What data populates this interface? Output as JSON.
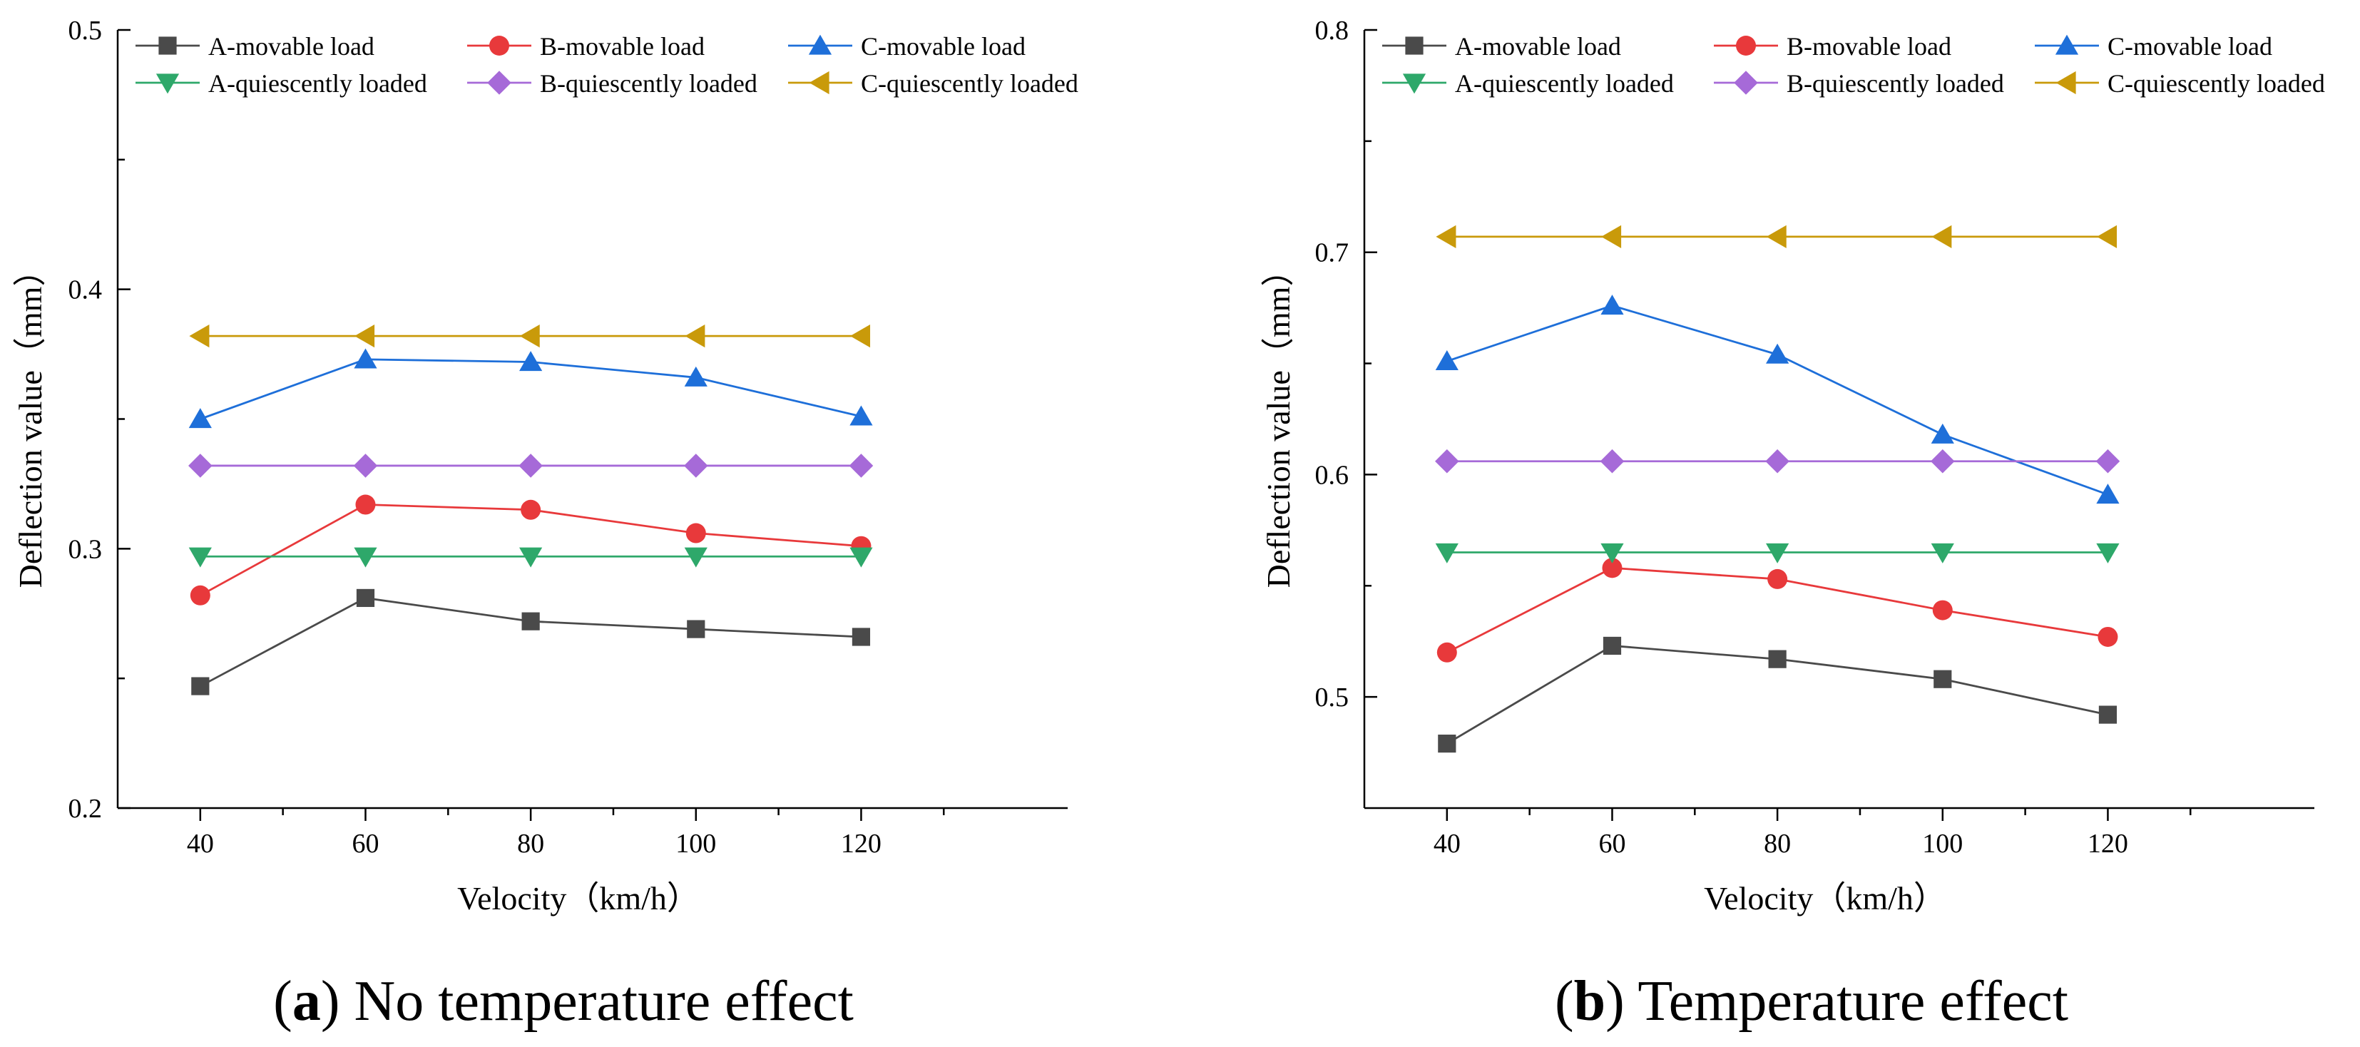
{
  "colors": {
    "A-movable load": "#4a4a4a",
    "B-movable load": "#e8393b",
    "C-movable load": "#1e6fd9",
    "A-quiescently loaded": "#2ea86a",
    "B-quiescently loaded": "#a66ad8",
    "C-quiescently loaded": "#c99a0a"
  },
  "markers": {
    "A-movable load": "square",
    "B-movable load": "circle",
    "C-movable load": "triangle-up",
    "A-quiescently loaded": "triangle-down",
    "B-quiescently loaded": "diamond",
    "C-quiescently loaded": "triangle-left"
  },
  "chart_data": [
    {
      "type": "line",
      "caption_letter": "a",
      "caption_text": " No temperature effect",
      "caption_open": "(",
      "caption_close": ")",
      "xlabel": "Velocity（km/h）",
      "ylabel": "Deflection value（mm）",
      "x": [
        40,
        60,
        80,
        100,
        120
      ],
      "xticks": [
        "40",
        "60",
        "80",
        "100",
        "120"
      ],
      "xlim": [
        30,
        145
      ],
      "ylim": [
        0.2,
        0.5
      ],
      "yticks": [
        "0.2",
        "0.3",
        "0.4",
        "0.5"
      ],
      "grid": false,
      "legend_position": "top",
      "series": [
        {
          "name": "A-movable load",
          "values": [
            0.247,
            0.281,
            0.272,
            0.269,
            0.266
          ]
        },
        {
          "name": "B-movable load",
          "values": [
            0.282,
            0.317,
            0.315,
            0.306,
            0.301
          ]
        },
        {
          "name": "C-movable load",
          "values": [
            0.35,
            0.373,
            0.372,
            0.366,
            0.351
          ]
        },
        {
          "name": "A-quiescently loaded",
          "values": [
            0.297,
            0.297,
            0.297,
            0.297,
            0.297
          ]
        },
        {
          "name": "B-quiescently loaded",
          "values": [
            0.332,
            0.332,
            0.332,
            0.332,
            0.332
          ]
        },
        {
          "name": "C-quiescently loaded",
          "values": [
            0.382,
            0.382,
            0.382,
            0.382,
            0.382
          ]
        }
      ]
    },
    {
      "type": "line",
      "caption_letter": "b",
      "caption_text": " Temperature effect",
      "caption_open": "(",
      "caption_close": ")",
      "xlabel": "Velocity（km/h）",
      "ylabel": "Deflection value（mm）",
      "x": [
        40,
        60,
        80,
        100,
        120
      ],
      "xticks": [
        "40",
        "60",
        "80",
        "100",
        "120"
      ],
      "xlim": [
        30,
        145
      ],
      "ylim": [
        0.45,
        0.8
      ],
      "yticks": [
        "0.5",
        "0.6",
        "0.7",
        "0.8"
      ],
      "grid": false,
      "legend_position": "top",
      "series": [
        {
          "name": "A-movable load",
          "values": [
            0.479,
            0.523,
            0.517,
            0.508,
            0.492
          ]
        },
        {
          "name": "B-movable load",
          "values": [
            0.52,
            0.558,
            0.553,
            0.539,
            0.527
          ]
        },
        {
          "name": "C-movable load",
          "values": [
            0.651,
            0.676,
            0.654,
            0.618,
            0.591
          ]
        },
        {
          "name": "A-quiescently loaded",
          "values": [
            0.565,
            0.565,
            0.565,
            0.565,
            0.565
          ]
        },
        {
          "name": "B-quiescently loaded",
          "values": [
            0.606,
            0.606,
            0.606,
            0.606,
            0.606
          ]
        },
        {
          "name": "C-quiescently loaded",
          "values": [
            0.707,
            0.707,
            0.707,
            0.707,
            0.707
          ]
        }
      ]
    }
  ]
}
